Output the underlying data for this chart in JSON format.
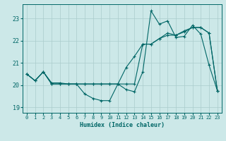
{
  "xlabel": "Humidex (Indice chaleur)",
  "background_color": "#cce8e8",
  "grid_color": "#aacccc",
  "line_color": "#006666",
  "xlim": [
    -0.5,
    23.5
  ],
  "ylim": [
    18.75,
    23.65
  ],
  "yticks": [
    19,
    20,
    21,
    22,
    23
  ],
  "xticks": [
    0,
    1,
    2,
    3,
    4,
    5,
    6,
    7,
    8,
    9,
    10,
    11,
    12,
    13,
    14,
    15,
    16,
    17,
    18,
    19,
    20,
    21,
    22,
    23
  ],
  "series1": [
    20.5,
    20.2,
    20.6,
    20.1,
    20.1,
    20.05,
    20.05,
    19.6,
    19.4,
    19.3,
    19.3,
    20.05,
    19.8,
    19.7,
    20.6,
    23.35,
    22.75,
    22.9,
    22.15,
    22.2,
    22.7,
    22.3,
    20.9,
    19.75
  ],
  "series2": [
    20.5,
    20.2,
    20.6,
    20.05,
    20.05,
    20.05,
    20.05,
    20.05,
    20.05,
    20.05,
    20.05,
    20.05,
    20.05,
    20.05,
    21.85,
    21.85,
    22.1,
    22.25,
    22.25,
    22.4,
    22.6,
    22.6,
    22.35,
    19.75
  ],
  "series3": [
    20.5,
    20.2,
    20.6,
    20.05,
    20.05,
    20.05,
    20.05,
    20.05,
    20.05,
    20.05,
    20.05,
    20.05,
    20.8,
    21.3,
    21.85,
    21.85,
    22.1,
    22.35,
    22.25,
    22.45,
    22.6,
    22.6,
    22.35,
    19.75
  ]
}
